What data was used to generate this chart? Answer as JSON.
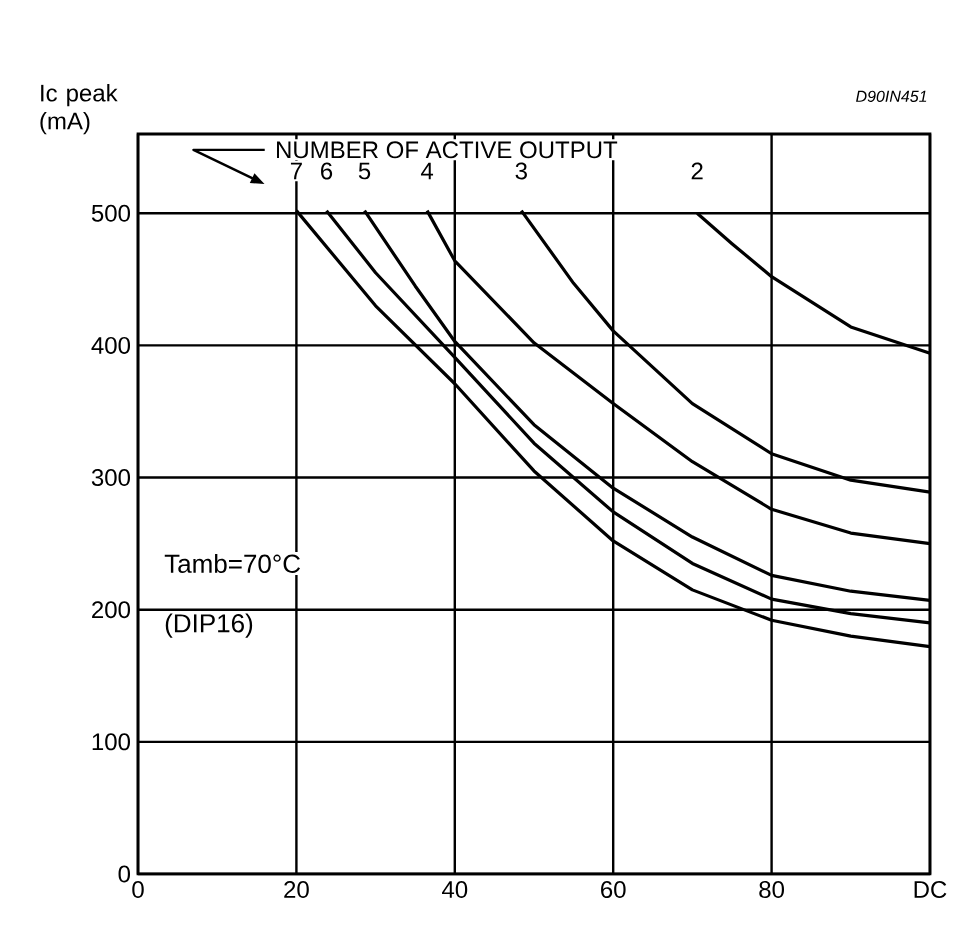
{
  "chart_data": {
    "type": "line",
    "xlabel": null,
    "ylabel": "Ic peak (mA)",
    "xlim": [
      0,
      100
    ],
    "ylim": [
      0,
      560
    ],
    "xticks": [
      0,
      20,
      40,
      60,
      80,
      {
        "value": 100,
        "label": "DC"
      }
    ],
    "yticks": [
      0,
      100,
      200,
      300,
      400,
      500
    ],
    "grid": true,
    "legend": "top left",
    "marker": "none",
    "line_style": "solid",
    "legend_title": "NUMBER OF ACTIVE OUTPUT",
    "annotations": [
      "Tamb=70°C",
      "(DIP16)",
      "D90IN451"
    ],
    "series": [
      {
        "name": "7",
        "color": "#000000",
        "x": [
          20,
          30,
          40,
          50,
          60,
          70,
          80,
          90,
          100
        ],
        "values": [
          502,
          430,
          371,
          305,
          252,
          215,
          192,
          180,
          172
        ]
      },
      {
        "name": "6",
        "color": "#000000",
        "x": [
          23.8,
          30,
          40,
          50,
          60,
          70,
          80,
          90,
          100
        ],
        "values": [
          502,
          455,
          391,
          326,
          274,
          235,
          208,
          197,
          190
        ]
      },
      {
        "name": "5",
        "color": "#000000",
        "x": [
          28.6,
          35,
          40,
          50,
          60,
          70,
          80,
          90,
          100
        ],
        "values": [
          502,
          445,
          403,
          340,
          292,
          255,
          226,
          214,
          207
        ]
      },
      {
        "name": "4",
        "color": "#000000",
        "x": [
          36.5,
          40,
          50,
          60,
          70,
          80,
          90,
          100
        ],
        "values": [
          502,
          464,
          402,
          356,
          312,
          276,
          258,
          250
        ]
      },
      {
        "name": "3",
        "color": "#000000",
        "x": [
          48.4,
          55,
          60,
          70,
          80,
          90,
          100
        ],
        "values": [
          502,
          447,
          411,
          356,
          318,
          298,
          289
        ]
      },
      {
        "name": "2",
        "color": "#000000",
        "x": [
          70.6,
          75,
          80,
          90,
          100
        ],
        "values": [
          500,
          477,
          452,
          414,
          394
        ]
      }
    ]
  }
}
